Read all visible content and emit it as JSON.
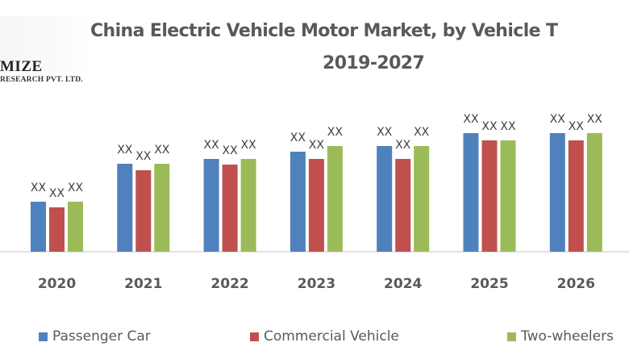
{
  "brand": {
    "logo_main": "MIZE",
    "logo_sub": "RESEARCH PVT. LTD."
  },
  "chart_data": {
    "type": "bar",
    "title": "China Electric Vehicle Motor Market, by Vehicle T",
    "subtitle": "2019-2027",
    "xlabel": "",
    "ylabel": "",
    "grid": false,
    "legend_position": "bottom",
    "ylim": [
      0,
      160
    ],
    "categories": [
      "2020",
      "2021",
      "2022",
      "2023",
      "2024",
      "2025",
      "2026"
    ],
    "series": [
      {
        "name": "Passenger Car",
        "color": "#4f81bd",
        "values": [
          62,
          109,
          115,
          124,
          131,
          147,
          147
        ],
        "labels": [
          "XX",
          "XX",
          "XX",
          "XX",
          "XX",
          "XX",
          "XX"
        ]
      },
      {
        "name": "Commercial Vehicle",
        "color": "#c0504d",
        "values": [
          55,
          101,
          108,
          115,
          115,
          138,
          138
        ],
        "labels": [
          "XX",
          "XX",
          "XX",
          "XX",
          "XX",
          "XX",
          "XX"
        ]
      },
      {
        "name": "Two-wheelers",
        "color": "#9bbb59",
        "values": [
          62,
          109,
          115,
          131,
          131,
          138,
          147
        ],
        "labels": [
          "XX",
          "XX",
          "XX",
          "XX",
          "XX",
          "XX",
          "XX"
        ]
      }
    ]
  }
}
